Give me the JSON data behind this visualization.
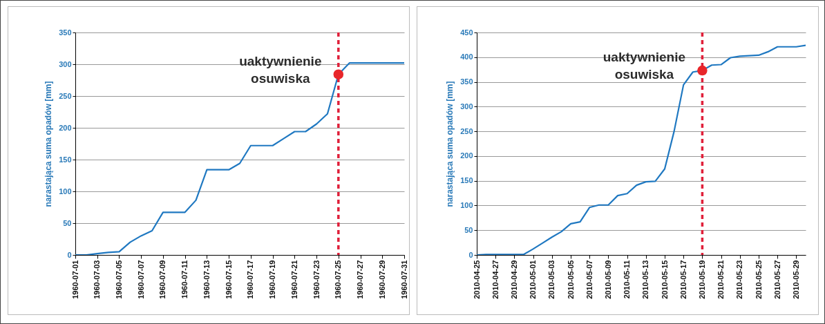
{
  "chart_data": [
    {
      "type": "line",
      "ylabel": "narastająca suma opadów [mm]",
      "x": [
        "1960-07-01",
        "1960-07-02",
        "1960-07-03",
        "1960-07-04",
        "1960-07-05",
        "1960-07-06",
        "1960-07-07",
        "1960-07-08",
        "1960-07-09",
        "1960-07-10",
        "1960-07-11",
        "1960-07-12",
        "1960-07-13",
        "1960-07-14",
        "1960-07-15",
        "1960-07-16",
        "1960-07-17",
        "1960-07-18",
        "1960-07-19",
        "1960-07-20",
        "1960-07-21",
        "1960-07-22",
        "1960-07-23",
        "1960-07-24",
        "1960-07-25",
        "1960-07-26",
        "1960-07-27",
        "1960-07-28",
        "1960-07-29",
        "1960-07-30",
        "1960-07-31"
      ],
      "series": [
        {
          "type": "line",
          "color": "#1f78c1",
          "values": [
            0,
            0,
            2,
            4,
            5,
            20,
            30,
            38,
            67,
            67,
            67,
            86,
            134,
            134,
            134,
            144,
            172,
            172,
            172,
            183,
            194,
            194,
            206,
            222,
            284,
            302,
            302,
            302,
            302,
            302,
            302
          ]
        },
        {
          "type": "scatter",
          "color": "#e8262a",
          "x": [
            "1960-07-25"
          ],
          "values": [
            284
          ]
        }
      ],
      "ref_lines": [
        {
          "axis": "x",
          "value": "1960-07-25",
          "color": "#e0203a",
          "line_style": "dashed"
        }
      ],
      "annotations": [
        {
          "text": "uaktywnienie osuwiska",
          "x": "1960-07-25",
          "y": 284
        }
      ],
      "xlim": [
        "1960-07-01",
        "1960-07-31"
      ],
      "xticks": [
        "1960-07-01",
        "1960-07-03",
        "1960-07-05",
        "1960-07-07",
        "1960-07-09",
        "1960-07-11",
        "1960-07-13",
        "1960-07-15",
        "1960-07-17",
        "1960-07-19",
        "1960-07-21",
        "1960-07-23",
        "1960-07-25",
        "1960-07-27",
        "1960-07-29",
        "1960-07-31"
      ],
      "ylim": [
        0,
        350
      ],
      "yticks": [
        0,
        50,
        100,
        150,
        200,
        250,
        300,
        350
      ],
      "grid": "y"
    },
    {
      "type": "line",
      "ylabel": "narastająca suma opadów [mm]",
      "x": [
        "2010-04-25",
        "2010-04-26",
        "2010-04-27",
        "2010-04-28",
        "2010-04-29",
        "2010-04-30",
        "2010-05-01",
        "2010-05-02",
        "2010-05-03",
        "2010-05-04",
        "2010-05-05",
        "2010-05-06",
        "2010-05-07",
        "2010-05-08",
        "2010-05-09",
        "2010-05-10",
        "2010-05-11",
        "2010-05-12",
        "2010-05-13",
        "2010-05-14",
        "2010-05-15",
        "2010-05-16",
        "2010-05-17",
        "2010-05-18",
        "2010-05-19",
        "2010-05-20",
        "2010-05-21",
        "2010-05-22",
        "2010-05-23",
        "2010-05-24",
        "2010-05-25",
        "2010-05-26",
        "2010-05-27",
        "2010-05-28",
        "2010-05-29",
        "2010-05-30"
      ],
      "series": [
        {
          "type": "line",
          "color": "#1f78c1",
          "values": [
            0,
            1,
            1,
            1,
            1,
            1,
            12,
            24,
            36,
            47,
            63,
            67,
            96,
            101,
            101,
            120,
            124,
            141,
            148,
            149,
            174,
            250,
            344,
            370,
            373,
            384,
            385,
            399,
            402,
            403,
            404,
            411,
            421,
            421,
            421,
            424
          ]
        },
        {
          "type": "scatter",
          "color": "#e8262a",
          "x": [
            "2010-05-19"
          ],
          "values": [
            373
          ]
        }
      ],
      "ref_lines": [
        {
          "axis": "x",
          "value": "2010-05-19",
          "color": "#e0203a",
          "line_style": "dashed"
        }
      ],
      "annotations": [
        {
          "text": "uaktywnienie osuwiska",
          "x": "2010-05-19",
          "y": 373
        }
      ],
      "xlim": [
        "2010-04-25",
        "2010-05-30"
      ],
      "xticks": [
        "2010-04-25",
        "2010-04-27",
        "2010-04-29",
        "2010-05-01",
        "2010-05-03",
        "2010-05-05",
        "2010-05-07",
        "2010-05-09",
        "2010-05-11",
        "2010-05-13",
        "2010-05-15",
        "2010-05-17",
        "2010-05-19",
        "2010-05-21",
        "2010-05-23",
        "2010-05-25",
        "2010-05-27",
        "2010-05-29"
      ],
      "ylim": [
        0,
        450
      ],
      "yticks": [
        0,
        50,
        100,
        150,
        200,
        250,
        300,
        350,
        400,
        450
      ],
      "grid": "y"
    }
  ]
}
